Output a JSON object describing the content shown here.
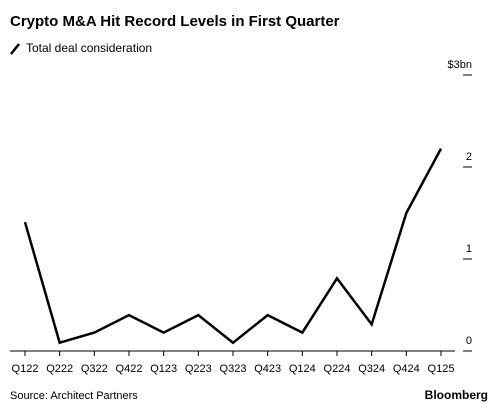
{
  "chart_data": {
    "type": "line",
    "title": "Crypto M&A Hit Record Levels in First Quarter",
    "categories": [
      "Q122",
      "Q222",
      "Q322",
      "Q422",
      "Q123",
      "Q223",
      "Q323",
      "Q423",
      "Q124",
      "Q224",
      "Q324",
      "Q424",
      "Q125"
    ],
    "series": [
      {
        "name": "Total deal consideration",
        "color": "#000000",
        "values": [
          1.4,
          0.09,
          0.2,
          0.39,
          0.2,
          0.39,
          0.09,
          0.39,
          0.2,
          0.79,
          0.29,
          1.5,
          2.2
        ]
      }
    ],
    "ylim": [
      0,
      3
    ],
    "yticks": [
      0,
      1,
      2,
      {
        "value": 3,
        "label": "$3bn"
      }
    ],
    "grid": false,
    "source": "Source: Architect Partners",
    "credit": "Bloomberg"
  }
}
